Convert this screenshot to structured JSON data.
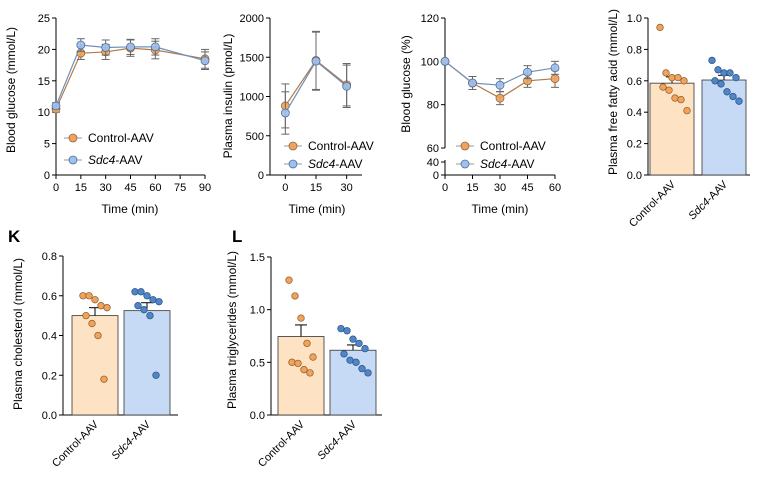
{
  "colors": {
    "control": "#f2a25a",
    "sdc4": "#4e86c9",
    "control_fill": "#fde2c3",
    "sdc4_fill": "#c6daf5",
    "control_line": "#b07a4a",
    "sdc4_line": "#6f8fb8"
  },
  "chart_data": [
    {
      "id": "gtt",
      "type": "line",
      "xlabel": "Time (min)",
      "ylabel": "Blood glucose (mmol/L)",
      "xticks": [
        "0",
        "15",
        "30",
        "45",
        "60",
        "75",
        "90"
      ],
      "yticks": [
        "0",
        "5",
        "10",
        "15",
        "20",
        "25"
      ],
      "xlim": [
        0,
        90
      ],
      "ylim": [
        0,
        25
      ],
      "x": [
        0,
        15,
        30,
        45,
        60,
        90
      ],
      "series": [
        {
          "name": "Control-AAV",
          "values": [
            10.5,
            19.4,
            19.6,
            20.2,
            19.9,
            18.5
          ],
          "errors": [
            0.5,
            1.0,
            1.2,
            1.3,
            1.4,
            1.5
          ]
        },
        {
          "name": "Sdc4-AAV",
          "values": [
            11.0,
            20.7,
            20.3,
            20.4,
            20.4,
            18.2
          ],
          "errors": [
            0.5,
            1.0,
            1.2,
            1.2,
            1.3,
            1.4
          ]
        }
      ],
      "legend": [
        "Control-AAV",
        "Sdc4-AAV"
      ]
    },
    {
      "id": "insulin",
      "type": "line",
      "xlabel": "Time (min)",
      "ylabel": "Plasma insulin (pmol/L)",
      "xticks": [
        "0",
        "15",
        "30"
      ],
      "yticks": [
        "0",
        "500",
        "1000",
        "1500",
        "2000"
      ],
      "xlim": [
        -7.5,
        37.5
      ],
      "ylim": [
        0,
        2000
      ],
      "x": [
        0,
        15,
        30
      ],
      "series": [
        {
          "name": "Control-AAV",
          "values": [
            880,
            1460,
            1150
          ],
          "errors": [
            280,
            370,
            270
          ]
        },
        {
          "name": "Sdc4-AAV",
          "values": [
            790,
            1450,
            1130
          ],
          "errors": [
            270,
            370,
            270
          ]
        }
      ],
      "legend": [
        "Control-AAV",
        "Sdc4-AAV"
      ]
    },
    {
      "id": "itt",
      "type": "line",
      "xlabel": "Time (min)",
      "ylabel": "Blood glucose (%)",
      "xticks": [
        "0",
        "15",
        "30",
        "45",
        "60"
      ],
      "yticks_upper": [
        "60",
        "80",
        "100",
        "120"
      ],
      "yticks_lower": [
        "0",
        "40"
      ],
      "xlim": [
        0,
        60
      ],
      "ylim": [
        60,
        120
      ],
      "x": [
        0,
        15,
        30,
        45,
        60
      ],
      "series": [
        {
          "name": "Control-AAV",
          "values": [
            100,
            90,
            83,
            91,
            92
          ],
          "errors": [
            0,
            3,
            3,
            3,
            4
          ]
        },
        {
          "name": "Sdc4-AAV",
          "values": [
            100,
            90,
            89,
            95,
            97
          ],
          "errors": [
            0,
            3,
            3,
            3,
            3
          ]
        }
      ],
      "legend": [
        "Control-AAV",
        "Sdc4-AAV"
      ]
    },
    {
      "id": "ffa",
      "type": "bar",
      "ylabel": "Plasma free fatty acid (mmol/L)",
      "yticks": [
        "0.0",
        "0.2",
        "0.4",
        "0.6",
        "0.8",
        "1.0"
      ],
      "ylim": [
        0,
        1.0
      ],
      "categories": [
        "Control-AAV",
        "Sdc4-AAV"
      ],
      "values": [
        0.585,
        0.605
      ],
      "errors": [
        0.04,
        0.03
      ],
      "points": [
        [
          0.94,
          0.65,
          0.62,
          0.62,
          0.6,
          0.56,
          0.54,
          0.49,
          0.48,
          0.41
        ],
        [
          0.73,
          0.67,
          0.65,
          0.65,
          0.62,
          0.6,
          0.58,
          0.53,
          0.5,
          0.47
        ]
      ]
    },
    {
      "id": "chol",
      "panel": "K",
      "type": "bar",
      "ylabel": "Plasma cholesterol (mmol/L)",
      "yticks": [
        "0.0",
        "0.2",
        "0.4",
        "0.6",
        "0.8"
      ],
      "ylim": [
        0,
        0.8
      ],
      "categories": [
        "Control-AAV",
        "Sdc4-AAV"
      ],
      "values": [
        0.5,
        0.525
      ],
      "errors": [
        0.04,
        0.04
      ],
      "points": [
        [
          0.6,
          0.6,
          0.58,
          0.55,
          0.54,
          0.5,
          0.46,
          0.4,
          0.18
        ],
        [
          0.62,
          0.62,
          0.6,
          0.58,
          0.57,
          0.55,
          0.53,
          0.5,
          0.2
        ]
      ]
    },
    {
      "id": "tg",
      "panel": "L",
      "type": "bar",
      "ylabel": "Plasma triglycerides (mmol/L)",
      "yticks": [
        "0.0",
        "0.5",
        "1.0",
        "1.5"
      ],
      "ylim": [
        0,
        1.5
      ],
      "categories": [
        "Control-AAV",
        "Sdc4-AAV"
      ],
      "values": [
        0.745,
        0.615
      ],
      "errors": [
        0.11,
        0.05
      ],
      "points": [
        [
          1.28,
          1.13,
          0.92,
          0.68,
          0.55,
          0.5,
          0.49,
          0.43,
          0.4
        ],
        [
          0.82,
          0.8,
          0.72,
          0.68,
          0.63,
          0.58,
          0.52,
          0.5,
          0.44,
          0.4
        ]
      ]
    }
  ]
}
